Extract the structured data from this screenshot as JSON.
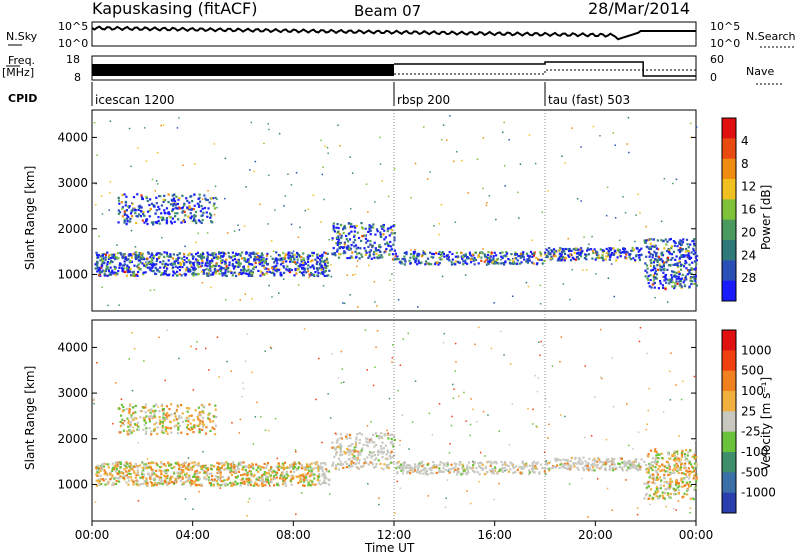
{
  "header": {
    "station": "Kapuskasing (fitACF)",
    "beam": "Beam 07",
    "date": "28/Mar/2014"
  },
  "noise_panel": {
    "left_label": "N.Sky",
    "left_ticks": [
      "10^5",
      "10^0"
    ],
    "right_label": "N.Search",
    "right_ticks": [
      "10^5",
      "10^0"
    ]
  },
  "freq_panel": {
    "left_label": "Freq.",
    "left_unit": "[MHz]",
    "left_ticks": [
      "18",
      "8"
    ],
    "right_label": "Nave",
    "right_ticks": [
      "60",
      "0"
    ]
  },
  "cpid_panel": {
    "label": "CPID",
    "segments": [
      {
        "name": "icescan 1200",
        "start_hour": 0
      },
      {
        "name": "rbsp 200",
        "start_hour": 12
      },
      {
        "name": "tau (fast) 503",
        "start_hour": 18
      }
    ]
  },
  "chart_data": [
    {
      "type": "heatmap",
      "name": "power",
      "ylabel": "Slant Range [km]",
      "yticks": [
        "1000",
        "2000",
        "3000",
        "4000"
      ],
      "ylim": [
        200,
        4600
      ],
      "colorbar": {
        "label": "Power [dB]",
        "ticks": [
          "4",
          "8",
          "12",
          "16",
          "20",
          "24",
          "28"
        ],
        "range": [
          0,
          32
        ],
        "colors": [
          "#1a1aff",
          "#2a50b8",
          "#2f7a78",
          "#4a9a60",
          "#7ec23a",
          "#f0c020",
          "#f08c10",
          "#e84a10",
          "#e01010"
        ]
      }
    },
    {
      "type": "heatmap",
      "name": "velocity",
      "ylabel": "Slant Range [km]",
      "yticks": [
        "1000",
        "2000",
        "3000",
        "4000"
      ],
      "ylim": [
        200,
        4600
      ],
      "colorbar": {
        "label": "Velocity [m s⁻¹]",
        "ticks": [
          "1000",
          "500",
          "100",
          "25",
          "-25",
          "-100",
          "-500",
          "-1000"
        ],
        "colors": [
          "#2a3fae",
          "#3a6fa8",
          "#3f8f6a",
          "#6ac23a",
          "#c8c8c0",
          "#f0b040",
          "#f08020",
          "#f04010",
          "#e01010"
        ]
      }
    }
  ],
  "time_axis": {
    "xlabel": "Time UT",
    "ticks": [
      "00:00",
      "04:00",
      "08:00",
      "12:00",
      "16:00",
      "20:00",
      "00:00"
    ],
    "xlim_hours": [
      0,
      24
    ]
  }
}
